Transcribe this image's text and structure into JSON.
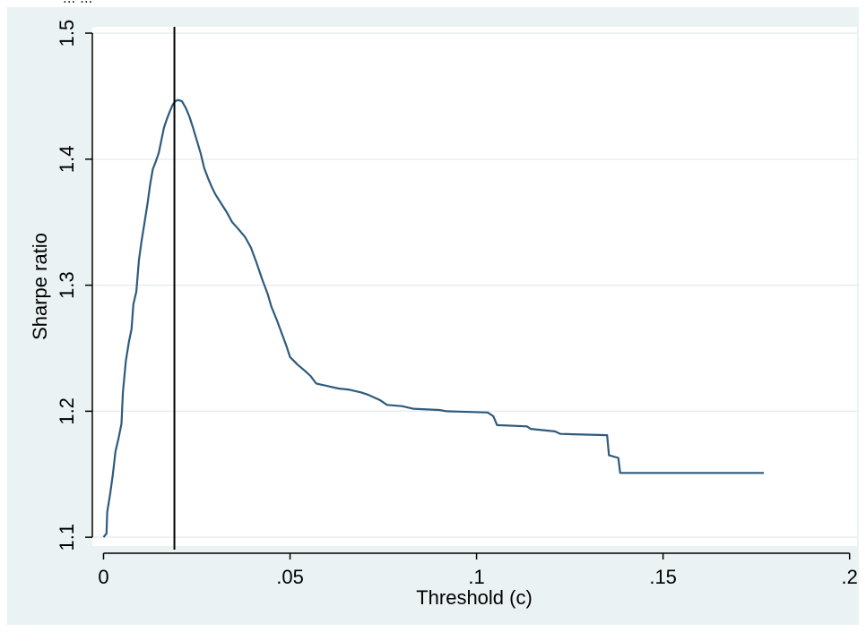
{
  "caption_fragment": "... ...",
  "chart_data": {
    "type": "line",
    "title": "",
    "xlabel": "Threshold (c)",
    "ylabel": "Sharpe ratio",
    "xlim": [
      -0.003,
      0.202
    ],
    "ylim": [
      1.093,
      1.505
    ],
    "xticks": [
      0,
      0.05,
      0.1,
      0.15,
      0.2
    ],
    "xtick_labels": [
      "0",
      ".05",
      ".1",
      ".15",
      ".2"
    ],
    "yticks": [
      1.1,
      1.2,
      1.3,
      1.4,
      1.5
    ],
    "ytick_labels": [
      "1.1",
      "1.2",
      "1.3",
      "1.4",
      "1.5"
    ],
    "grid": "horizontal",
    "legend": "none",
    "vline_x": 0.019,
    "series": [
      {
        "points": [
          [
            0.0,
            1.1
          ],
          [
            0.0008,
            1.103
          ],
          [
            0.001,
            1.12
          ],
          [
            0.0018,
            1.135
          ],
          [
            0.0025,
            1.15
          ],
          [
            0.0032,
            1.168
          ],
          [
            0.004,
            1.178
          ],
          [
            0.0048,
            1.19
          ],
          [
            0.0052,
            1.215
          ],
          [
            0.006,
            1.24
          ],
          [
            0.0068,
            1.255
          ],
          [
            0.0075,
            1.265
          ],
          [
            0.008,
            1.285
          ],
          [
            0.0088,
            1.295
          ],
          [
            0.0095,
            1.32
          ],
          [
            0.0102,
            1.335
          ],
          [
            0.011,
            1.35
          ],
          [
            0.0118,
            1.365
          ],
          [
            0.0125,
            1.38
          ],
          [
            0.0132,
            1.392
          ],
          [
            0.014,
            1.398
          ],
          [
            0.0148,
            1.405
          ],
          [
            0.0155,
            1.415
          ],
          [
            0.0162,
            1.425
          ],
          [
            0.017,
            1.432
          ],
          [
            0.0178,
            1.438
          ],
          [
            0.0185,
            1.443
          ],
          [
            0.0192,
            1.446
          ],
          [
            0.02,
            1.447
          ],
          [
            0.021,
            1.446
          ],
          [
            0.022,
            1.441
          ],
          [
            0.023,
            1.434
          ],
          [
            0.024,
            1.425
          ],
          [
            0.025,
            1.415
          ],
          [
            0.026,
            1.405
          ],
          [
            0.027,
            1.393
          ],
          [
            0.028,
            1.385
          ],
          [
            0.029,
            1.378
          ],
          [
            0.03,
            1.372
          ],
          [
            0.0315,
            1.365
          ],
          [
            0.033,
            1.358
          ],
          [
            0.0345,
            1.35
          ],
          [
            0.036,
            1.345
          ],
          [
            0.038,
            1.338
          ],
          [
            0.0395,
            1.33
          ],
          [
            0.041,
            1.318
          ],
          [
            0.0425,
            1.305
          ],
          [
            0.044,
            1.293
          ],
          [
            0.045,
            1.283
          ],
          [
            0.0465,
            1.272
          ],
          [
            0.048,
            1.26
          ],
          [
            0.049,
            1.252
          ],
          [
            0.05,
            1.243
          ],
          [
            0.052,
            1.237
          ],
          [
            0.054,
            1.232
          ],
          [
            0.0555,
            1.228
          ],
          [
            0.057,
            1.222
          ],
          [
            0.06,
            1.22
          ],
          [
            0.063,
            1.218
          ],
          [
            0.066,
            1.217
          ],
          [
            0.069,
            1.215
          ],
          [
            0.071,
            1.213
          ],
          [
            0.074,
            1.209
          ],
          [
            0.076,
            1.205
          ],
          [
            0.08,
            1.204
          ],
          [
            0.083,
            1.202
          ],
          [
            0.09,
            1.201
          ],
          [
            0.092,
            1.2
          ],
          [
            0.103,
            1.199
          ],
          [
            0.1045,
            1.196
          ],
          [
            0.1055,
            1.189
          ],
          [
            0.1135,
            1.188
          ],
          [
            0.1145,
            1.186
          ],
          [
            0.121,
            1.184
          ],
          [
            0.1225,
            1.182
          ],
          [
            0.135,
            1.181
          ],
          [
            0.1355,
            1.165
          ],
          [
            0.138,
            1.163
          ],
          [
            0.1385,
            1.151
          ],
          [
            0.177,
            1.151
          ]
        ]
      }
    ]
  }
}
